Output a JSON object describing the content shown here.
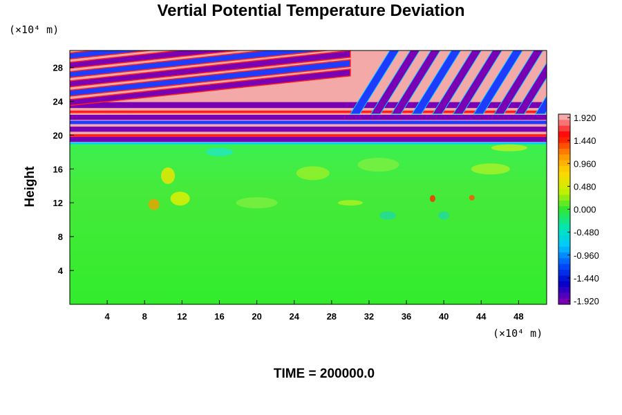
{
  "chart_data": {
    "type": "heatmap",
    "title": "Vertial Potential Temperature Deviation",
    "ylabel": "Height",
    "x_unit": "(×10⁴ m)",
    "y_unit": "(×10⁴ m)",
    "xlim": [
      0,
      51
    ],
    "ylim": [
      0,
      30
    ],
    "x_ticks": [
      4,
      8,
      12,
      16,
      20,
      24,
      28,
      32,
      36,
      40,
      44,
      48
    ],
    "y_ticks": [
      4,
      8,
      12,
      16,
      20,
      24,
      28
    ],
    "colorbar": {
      "ticks": [
        1.92,
        1.44,
        0.96,
        0.48,
        0.0,
        -0.48,
        -0.96,
        -1.44,
        -1.92
      ],
      "tick_labels": [
        "1.920",
        "1.440",
        "0.960",
        "0.480",
        "0.000",
        "-0.480",
        "-0.960",
        "-1.440",
        "-1.920"
      ],
      "range": [
        -1.92,
        1.92
      ],
      "colors_high_to_low": [
        "#f4a9a9",
        "#ff0000",
        "#ff8c00",
        "#ffd700",
        "#c8f000",
        "#32e632",
        "#00e6b4",
        "#00c8ff",
        "#0050ff",
        "#0000c8",
        "#7800b4"
      ]
    },
    "annotation": "TIME = 200000.0",
    "field_description": {
      "lower_region": {
        "y_range": [
          0,
          19
        ],
        "approx_value": 0.0
      },
      "upper_region": {
        "y_range": [
          19,
          30
        ],
        "pattern": "alternating bands between -1.92 and 1.92"
      }
    }
  },
  "colors": {
    "background": "#ffffff",
    "axis": "#000000",
    "field_neutral": "#32e632"
  }
}
